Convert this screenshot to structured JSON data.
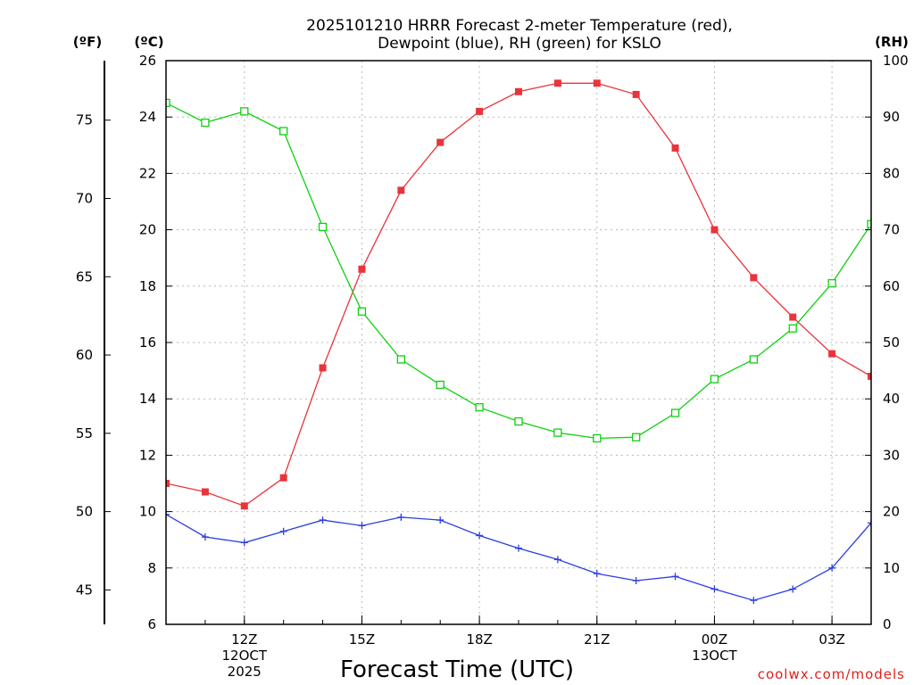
{
  "chart_data": {
    "type": "line",
    "title_lines": [
      "2025101210 HRRR Forecast 2-meter Temperature (red),",
      "Dewpoint (blue), RH (green) for KSLO"
    ],
    "xlabel": "Forecast Time (UTC)",
    "credit": "coolwx.com/models",
    "units": {
      "fahrenheit": "(ºF)",
      "celsius": "(ºC)",
      "rh": "(RH)"
    },
    "hours": [
      10,
      11,
      12,
      13,
      14,
      15,
      16,
      17,
      18,
      19,
      20,
      21,
      22,
      23,
      24,
      25,
      26,
      27,
      28
    ],
    "x_ticks": [
      {
        "hour": 12,
        "lines": [
          "12Z",
          "12OCT",
          "2025"
        ]
      },
      {
        "hour": 15,
        "lines": [
          "15Z"
        ]
      },
      {
        "hour": 18,
        "lines": [
          "18Z"
        ]
      },
      {
        "hour": 21,
        "lines": [
          "21Z"
        ]
      },
      {
        "hour": 24,
        "lines": [
          "00Z",
          "13OCT"
        ]
      },
      {
        "hour": 27,
        "lines": [
          "03Z"
        ]
      }
    ],
    "celsius_axis": {
      "range": [
        6,
        26
      ],
      "ticks": [
        "6",
        "8",
        "10",
        "12",
        "14",
        "16",
        "18",
        "20",
        "22",
        "24",
        "26"
      ]
    },
    "fahrenheit_axis": {
      "ticks": [
        "45",
        "50",
        "55",
        "60",
        "65",
        "70",
        "75"
      ]
    },
    "rh_axis": {
      "range": [
        0,
        100
      ],
      "ticks": [
        "0",
        "10",
        "20",
        "30",
        "40",
        "50",
        "60",
        "70",
        "80",
        "90",
        "100"
      ]
    },
    "series": [
      {
        "name": "2-meter Temperature",
        "axis": "celsius",
        "color": "#e8343b",
        "marker": "filled-square",
        "values": [
          11.0,
          10.7,
          10.2,
          11.2,
          15.1,
          18.6,
          21.4,
          23.1,
          24.2,
          24.9,
          25.2,
          25.2,
          24.8,
          22.9,
          20.0,
          18.3,
          16.9,
          15.6,
          14.8
        ]
      },
      {
        "name": "Dewpoint",
        "axis": "celsius",
        "color": "#2c3ee0",
        "marker": "plus",
        "values": [
          9.9,
          9.1,
          8.9,
          9.3,
          9.7,
          9.5,
          9.8,
          9.7,
          9.15,
          8.7,
          8.3,
          7.8,
          7.55,
          7.7,
          7.25,
          6.85,
          7.25,
          8.0,
          9.6
        ]
      },
      {
        "name": "RH",
        "axis": "rh",
        "color": "#10d010",
        "marker": "open-square",
        "values": [
          92.5,
          89,
          91,
          87.5,
          70.5,
          55.5,
          47,
          42.5,
          38.5,
          36,
          34,
          33,
          33.2,
          37.5,
          43.5,
          47,
          52.5,
          60.5,
          71
        ]
      }
    ]
  }
}
